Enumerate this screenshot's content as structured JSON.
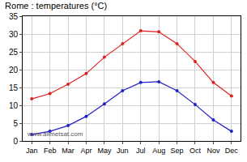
{
  "chart_data": {
    "type": "line",
    "title": "Rome : temperatures (°C)",
    "annotations": [
      "www.allmetsat.com"
    ],
    "categories": [
      "Jan",
      "Feb",
      "Mar",
      "Apr",
      "May",
      "Jun",
      "Jul",
      "Aug",
      "Sep",
      "Oct",
      "Nov",
      "Dec"
    ],
    "series": [
      {
        "color": "#e02020",
        "marker": "circle",
        "values": [
          11.8,
          13.3,
          15.9,
          18.9,
          23.5,
          27.3,
          30.9,
          30.6,
          27.3,
          22.3,
          16.4,
          12.6
        ]
      },
      {
        "color": "#2020c8",
        "marker": "circle",
        "values": [
          1.8,
          2.7,
          4.3,
          6.9,
          10.4,
          14.1,
          16.4,
          16.6,
          14.1,
          10.2,
          5.9,
          2.7
        ]
      }
    ],
    "ylim": [
      0,
      35
    ],
    "yticks": [
      0,
      5,
      10,
      15,
      20,
      25,
      30,
      35
    ],
    "grid": true
  }
}
